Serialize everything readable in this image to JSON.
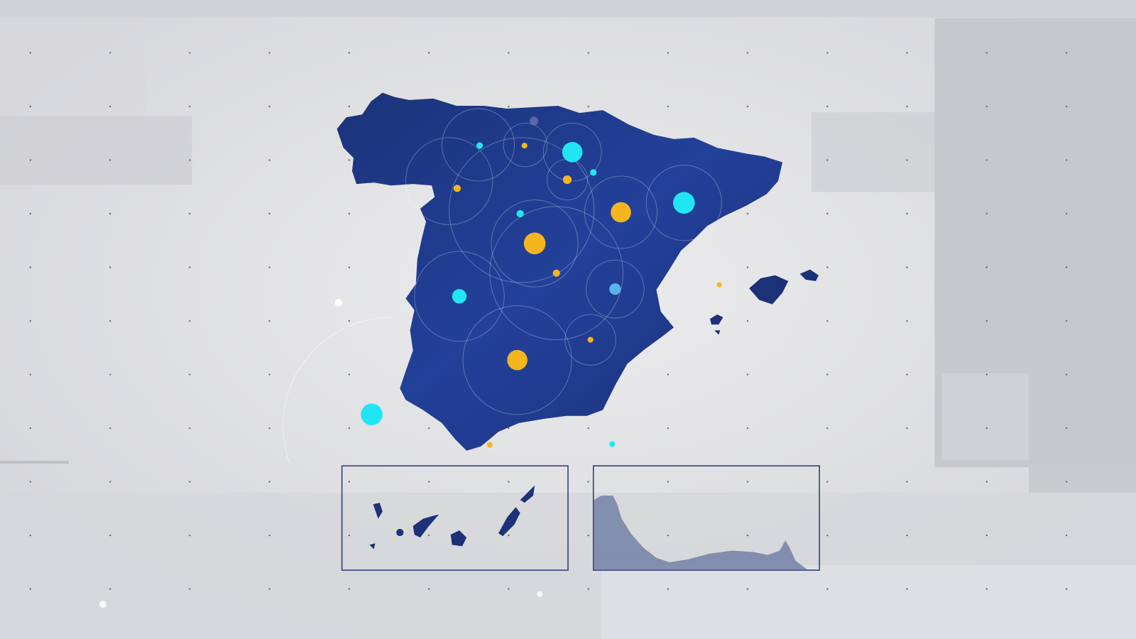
{
  "colors": {
    "background": "#e2e3e5",
    "land": "#1f3a8a",
    "land_dark": "#1a2f72",
    "marker_cyan": "#22e5f3",
    "marker_yellow": "#f4b51f",
    "marker_lightblue": "#58b3ee",
    "inset_border": "#2a3a78",
    "inset_land": "#7a86a8"
  },
  "icons": [
    "map-of-spain",
    "balearic-islands",
    "canary-islands-inset",
    "ceuta-melilla-inset"
  ]
}
